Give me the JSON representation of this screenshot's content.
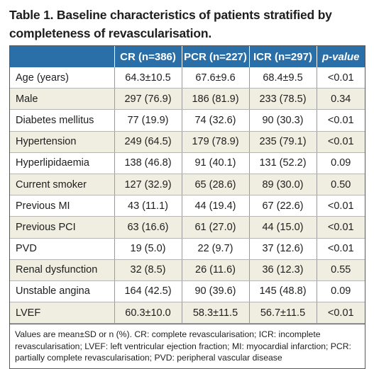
{
  "title": "Table 1. Baseline characteristics of patients stratified by completeness of revascularisation.",
  "headers": [
    "",
    "CR (n=386)",
    "PCR (n=227)",
    "ICR (n=297)",
    "p-value"
  ],
  "rows": [
    [
      "Age (years)",
      "64.3±10.5",
      "67.6±9.6",
      "68.4±9.5",
      "<0.01"
    ],
    [
      "Male",
      "297 (76.9)",
      "186 (81.9)",
      "233 (78.5)",
      "0.34"
    ],
    [
      "Diabetes mellitus",
      "77 (19.9)",
      "74 (32.6)",
      "90 (30.3)",
      "<0.01"
    ],
    [
      "Hypertension",
      "249 (64.5)",
      "179 (78.9)",
      "235 (79.1)",
      "<0.01"
    ],
    [
      "Hyperlipidaemia",
      "138 (46.8)",
      "91 (40.1)",
      "131 (52.2)",
      "0.09"
    ],
    [
      "Current smoker",
      "127 (32.9)",
      "65 (28.6)",
      "89 (30.0)",
      "0.50"
    ],
    [
      "Previous MI",
      "43 (11.1)",
      "44 (19.4)",
      "67 (22.6)",
      "<0.01"
    ],
    [
      "Previous PCI",
      "63 (16.6)",
      "61 (27.0)",
      "44 (15.0)",
      "<0.01"
    ],
    [
      "PVD",
      "19 (5.0)",
      "22 (9.7)",
      "37 (12.6)",
      "<0.01"
    ],
    [
      "Renal dysfunction",
      "32 (8.5)",
      "26 (11.6)",
      "36 (12.3)",
      "0.55"
    ],
    [
      "Unstable angina",
      "164 (42.5)",
      "90 (39.6)",
      "145 (48.8)",
      "0.09"
    ],
    [
      "LVEF",
      "60.3±10.0",
      "58.3±11.5",
      "56.7±11.5",
      "<0.01"
    ]
  ],
  "footnote": "Values are mean±SD or n (%). CR: complete revascularisation; ICR: incomplete revascularisation; LVEF: left ventricular ejection fraction; MI: myocardial infarction; PCR: partially complete revascularisation; PVD: peripheral vascular disease",
  "colors": {
    "header_bg": "#2a6fa8",
    "stripe_bg": "#efeee0"
  }
}
